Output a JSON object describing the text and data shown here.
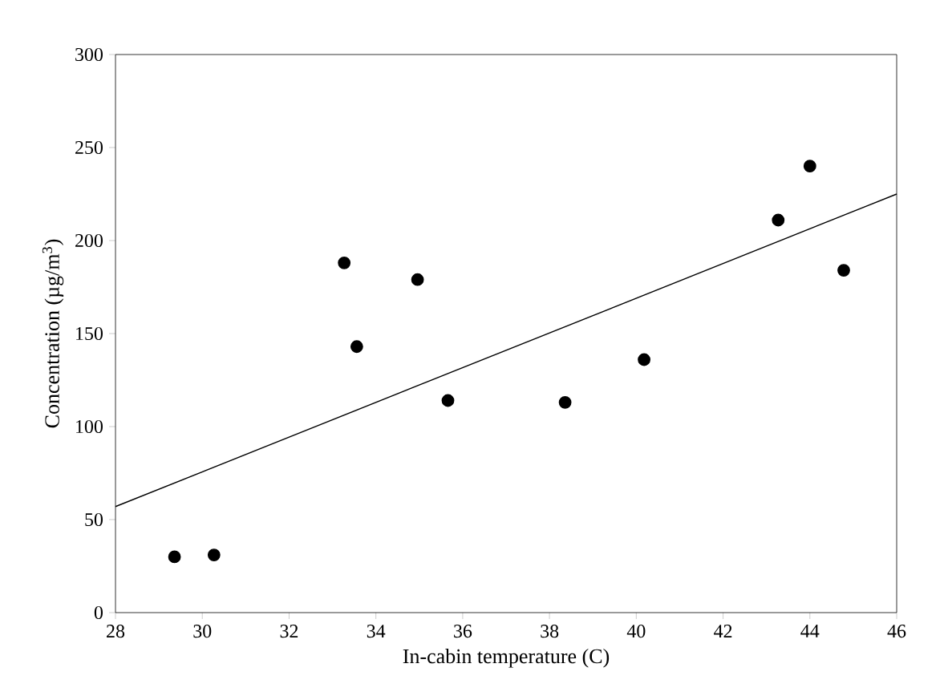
{
  "chart_data": {
    "type": "scatter",
    "xlabel": "In-cabin temperature (C)",
    "ylabel": "Concentration (µg/m$^{3}$)",
    "xlim": [
      28,
      46
    ],
    "ylim": [
      0,
      300
    ],
    "xticks": [
      28,
      30,
      32,
      34,
      36,
      38,
      40,
      42,
      44,
      46
    ],
    "yticks": [
      0,
      50,
      100,
      150,
      200,
      250,
      300
    ],
    "grid": false,
    "marker": "circle",
    "series": [
      {
        "color": "#000000",
        "x": [
          29.36,
          30.27,
          33.27,
          33.56,
          34.96,
          35.66,
          38.36,
          40.18,
          43.27,
          44.0,
          44.78
        ],
        "values": [
          30,
          31,
          188,
          143,
          179,
          114,
          113,
          136,
          211,
          240,
          184
        ]
      },
      {
        "type": "line",
        "color": "#000000",
        "marker": "none",
        "x": [
          28,
          46
        ],
        "values": [
          57,
          225
        ]
      }
    ]
  }
}
